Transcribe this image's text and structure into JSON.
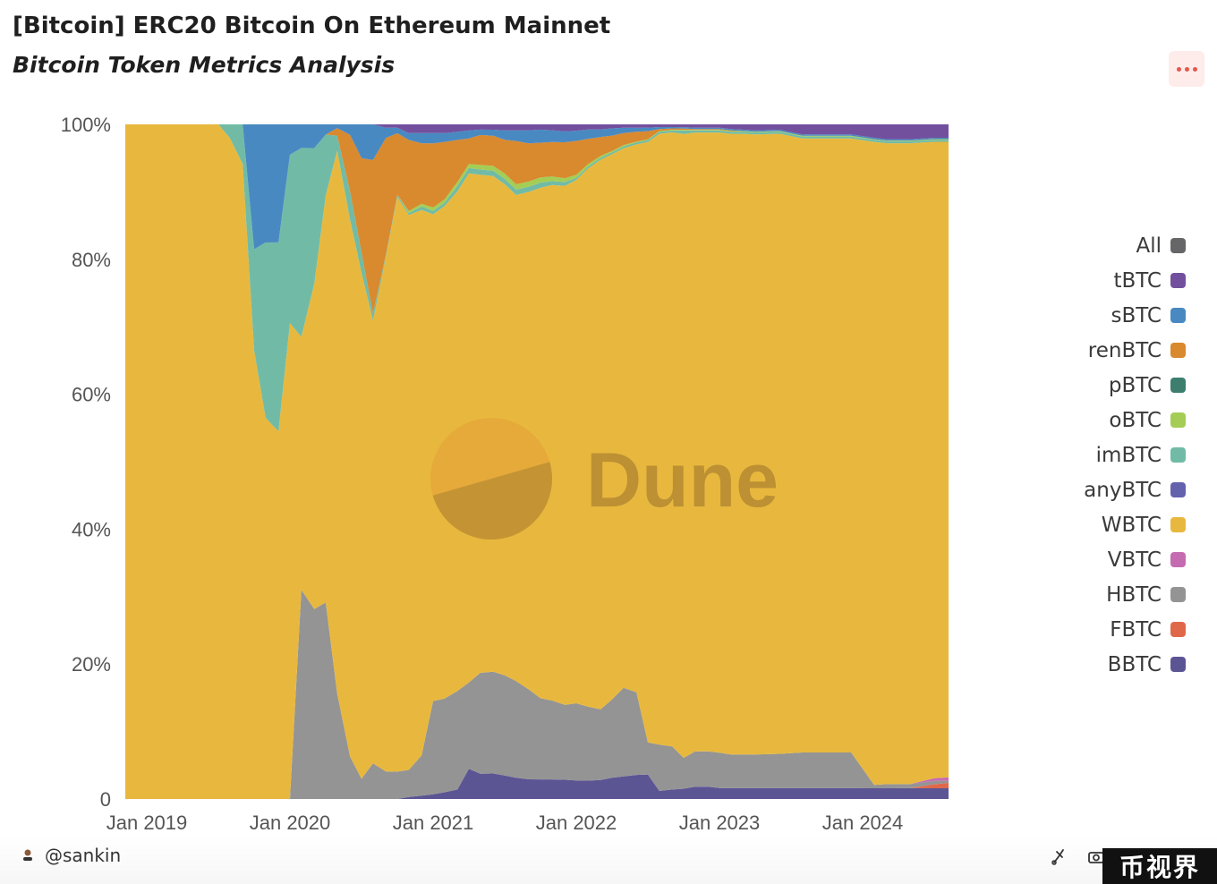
{
  "header": {
    "title": "[Bitcoin] ERC20 Bitcoin On Ethereum Mainnet",
    "subtitle": "Bitcoin Token Metrics Analysis"
  },
  "watermark": {
    "text": "Dune"
  },
  "footer": {
    "author": "@sankin",
    "badge": "币视界"
  },
  "colors": {
    "BBTC": "#5b5594",
    "FBTC": "#e0684a",
    "HBTC": "#949494",
    "VBTC": "#c56bb1",
    "WBTC": "#e8b83e",
    "anyBTC": "#6461ad",
    "imBTC": "#71bba6",
    "oBTC": "#a4cd55",
    "pBTC": "#3d7e6f",
    "renBTC": "#d9892e",
    "sBTC": "#4989c2",
    "tBTC": "#72509e",
    "All": "#666668",
    "more": "#e2574c"
  },
  "legend": [
    "All",
    "tBTC",
    "sBTC",
    "renBTC",
    "pBTC",
    "oBTC",
    "imBTC",
    "anyBTC",
    "WBTC",
    "VBTC",
    "HBTC",
    "FBTC",
    "BBTC"
  ],
  "chart_data": {
    "type": "area",
    "stacked": true,
    "normalized": true,
    "title": "[Bitcoin] ERC20 Bitcoin On Ethereum Mainnet",
    "subtitle": "Bitcoin Token Metrics Analysis",
    "xlabel": "",
    "ylabel": "",
    "ylim": [
      0,
      100
    ],
    "yticks": [
      "0",
      "20%",
      "40%",
      "60%",
      "80%",
      "100%"
    ],
    "xticks": [
      {
        "label": "Jan 2019",
        "x": 2019.0
      },
      {
        "label": "Jan 2020",
        "x": 2020.0
      },
      {
        "label": "Jan 2021",
        "x": 2021.0
      },
      {
        "label": "Jan 2022",
        "x": 2022.0
      },
      {
        "label": "Jan 2023",
        "x": 2023.0
      },
      {
        "label": "Jan 2024",
        "x": 2024.0
      }
    ],
    "xlim": [
      2018.85,
      2024.6
    ],
    "x": [
      2018.85,
      2019.5,
      2019.58,
      2019.67,
      2019.75,
      2019.83,
      2019.92,
      2020.0,
      2020.08,
      2020.17,
      2020.25,
      2020.33,
      2020.42,
      2020.5,
      2020.58,
      2020.67,
      2020.75,
      2020.83,
      2020.92,
      2021.0,
      2021.08,
      2021.17,
      2021.25,
      2021.33,
      2021.42,
      2021.5,
      2021.58,
      2021.67,
      2021.75,
      2021.83,
      2021.92,
      2022.0,
      2022.08,
      2022.17,
      2022.25,
      2022.33,
      2022.42,
      2022.5,
      2022.58,
      2022.67,
      2022.75,
      2022.83,
      2022.92,
      2023.0,
      2023.08,
      2023.17,
      2023.25,
      2023.42,
      2023.58,
      2023.75,
      2023.92,
      2024.08,
      2024.17,
      2024.33,
      2024.5,
      2024.6
    ],
    "series": [
      {
        "name": "BBTC",
        "values": [
          0,
          0,
          0,
          0,
          0,
          0,
          0,
          0,
          0,
          0,
          0,
          0,
          0,
          0,
          0,
          0,
          0,
          0.3,
          0.5,
          0.7,
          1.0,
          1.4,
          4.5,
          3.8,
          3.8,
          3.5,
          3.2,
          3.0,
          3.0,
          3.0,
          3.0,
          2.9,
          2.9,
          3.0,
          3.2,
          3.4,
          3.6,
          3.6,
          1.2,
          1.4,
          1.5,
          1.8,
          1.8,
          1.6,
          1.6,
          1.6,
          1.6,
          1.6,
          1.6,
          1.6,
          1.6,
          1.6,
          1.6,
          1.6,
          1.6,
          1.6
        ]
      },
      {
        "name": "FBTC",
        "values": [
          0,
          0,
          0,
          0,
          0,
          0,
          0,
          0,
          0,
          0,
          0,
          0,
          0,
          0,
          0,
          0,
          0,
          0,
          0,
          0,
          0,
          0,
          0,
          0,
          0,
          0,
          0,
          0,
          0,
          0,
          0,
          0,
          0,
          0,
          0,
          0,
          0,
          0,
          0,
          0,
          0,
          0,
          0,
          0,
          0,
          0,
          0,
          0,
          0,
          0,
          0,
          0,
          0,
          0,
          0.6,
          0.8
        ]
      },
      {
        "name": "HBTC",
        "values": [
          0,
          0,
          0,
          0,
          0,
          0,
          0,
          0,
          31,
          28,
          29,
          14,
          6,
          3,
          5,
          4,
          4,
          4,
          6,
          13.8,
          13.9,
          14.6,
          12.9,
          15.2,
          15.2,
          14.9,
          14.5,
          13.7,
          12.4,
          12.1,
          11.7,
          12.1,
          11.7,
          11.2,
          11.8,
          13.3,
          12.4,
          4.7,
          6.9,
          6.4,
          4.5,
          5.2,
          5.2,
          5.2,
          5.0,
          5.0,
          5.0,
          5.1,
          5.3,
          5.3,
          5.3,
          0.5,
          0.6,
          0.6,
          0.5,
          0.3
        ]
      },
      {
        "name": "VBTC",
        "values": [
          0,
          0,
          0,
          0,
          0,
          0,
          0,
          0,
          0,
          0,
          0,
          0,
          0,
          0,
          0,
          0,
          0,
          0,
          0,
          0,
          0,
          0,
          0,
          0,
          0,
          0,
          0,
          0,
          0,
          0,
          0,
          0,
          0,
          0,
          0,
          0,
          0,
          0,
          0,
          0,
          0,
          0,
          0,
          0,
          0,
          0,
          0,
          0,
          0,
          0,
          0,
          0,
          0,
          0,
          0.4,
          0.5
        ]
      },
      {
        "name": "WBTC",
        "values": [
          100,
          100,
          98,
          80,
          66.5,
          56.5,
          54.5,
          70.5,
          37.5,
          48,
          60,
          72,
          76,
          75,
          62,
          75,
          84,
          82,
          81,
          72,
          73,
          74,
          76,
          75,
          74,
          73,
          73,
          76,
          78,
          79,
          81,
          82,
          85,
          87,
          82,
          81,
          82,
          88,
          91,
          91,
          91,
          91,
          91,
          91,
          92,
          92,
          92,
          92,
          91,
          91,
          91,
          95.5,
          95.2,
          95.0,
          94.7,
          94.5
        ]
      },
      {
        "name": "anyBTC",
        "values": [
          0,
          0,
          0,
          0,
          0,
          0,
          0,
          0,
          0,
          0,
          0,
          0,
          0,
          0,
          0,
          0,
          0,
          0,
          0,
          0,
          0,
          0,
          0,
          0,
          0,
          0,
          0,
          0,
          0,
          0,
          0,
          0,
          0,
          0,
          0,
          0,
          0,
          0,
          0,
          0,
          0,
          0,
          0,
          0,
          0,
          0,
          0,
          0,
          0,
          0,
          0,
          0,
          0,
          0,
          0,
          0
        ]
      },
      {
        "name": "imBTC",
        "values": [
          0,
          0,
          2,
          5,
          15,
          26,
          28,
          25,
          28,
          20,
          9,
          2,
          4,
          3,
          1,
          0.3,
          0.3,
          0.3,
          0.5,
          0.5,
          0.5,
          0.8,
          0.8,
          0.8,
          0.8,
          0.8,
          0.8,
          0.8,
          0.8,
          0.6,
          0.6,
          0.3,
          0.3,
          0.3,
          0.3,
          0.3,
          0.3,
          0.3,
          0.3,
          0.3,
          0.5,
          0.3,
          0.3,
          0.3,
          0.3,
          0.3,
          0.3,
          0.3,
          0.3,
          0.3,
          0.3,
          0.3,
          0.3,
          0.3,
          0.3,
          0.3
        ]
      },
      {
        "name": "oBTC",
        "values": [
          0,
          0,
          0,
          0,
          0,
          0,
          0,
          0,
          0,
          0,
          0,
          0,
          0,
          0,
          0,
          0,
          0,
          0.3,
          0.4,
          0.5,
          0.5,
          0.6,
          0.6,
          0.7,
          0.7,
          0.8,
          0.8,
          0.8,
          0.8,
          0.7,
          0.6,
          0.5,
          0.4,
          0.3,
          0.2,
          0.2,
          0.1,
          0.1,
          0.1,
          0.1,
          0.1,
          0.1,
          0.1,
          0.1,
          0.1,
          0.1,
          0.1,
          0.1,
          0.1,
          0.1,
          0.1,
          0.1,
          0.1,
          0.1,
          0.1,
          0.1
        ]
      },
      {
        "name": "pBTC",
        "values": [
          0,
          0,
          0,
          0,
          0,
          0,
          0,
          0,
          0,
          0,
          0,
          0,
          0,
          0,
          0,
          0,
          0,
          0,
          0,
          0,
          0,
          0,
          0,
          0,
          0,
          0,
          0,
          0,
          0,
          0,
          0,
          0,
          0,
          0,
          0,
          0,
          0,
          0,
          0,
          0,
          0,
          0,
          0,
          0,
          0,
          0,
          0,
          0,
          0,
          0,
          0,
          0,
          0,
          0,
          0,
          0
        ]
      },
      {
        "name": "renBTC",
        "values": [
          0,
          0,
          0,
          0,
          0,
          0,
          0,
          0,
          0,
          0,
          0,
          1,
          8,
          14,
          21.5,
          17,
          9,
          10.5,
          9,
          9.5,
          8.5,
          6.2,
          3.8,
          4.5,
          4.5,
          5,
          6.5,
          5.8,
          5.3,
          5.3,
          5.6,
          5.3,
          4,
          3,
          2.3,
          1.8,
          1.5,
          1.2,
          0.3,
          0.2,
          0.2,
          0.1,
          0.1,
          0.1,
          0.1,
          0,
          0,
          0,
          0,
          0,
          0,
          0,
          0,
          0,
          0,
          0
        ]
      },
      {
        "name": "sBTC",
        "values": [
          0,
          0,
          0,
          0,
          18.5,
          17.5,
          17.5,
          4.5,
          3.5,
          3.5,
          1.5,
          0.5,
          1.5,
          5,
          5,
          1.5,
          0.8,
          1,
          1.5,
          1.5,
          1.3,
          1.2,
          1.2,
          0.8,
          0.9,
          1.4,
          1.6,
          2.0,
          2.0,
          1.8,
          1.7,
          1.6,
          1.5,
          1.2,
          1.1,
          0.8,
          0.6,
          0.5,
          0.3,
          0.2,
          0.2,
          0.2,
          0.2,
          0.2,
          0.2,
          0.2,
          0.2,
          0.2,
          0.2,
          0.2,
          0.2,
          0.2,
          0.2,
          0.2,
          0.2,
          0.2
        ]
      },
      {
        "name": "tBTC",
        "values": [
          0,
          0,
          0,
          0,
          0,
          0,
          0,
          0,
          0,
          0,
          0,
          0,
          0,
          0,
          0,
          0.5,
          0.5,
          1.3,
          1.3,
          1.3,
          1.3,
          1.1,
          0.9,
          0.8,
          0.8,
          0.9,
          0.9,
          0.9,
          0.8,
          0.9,
          1.1,
          1.0,
          0.8,
          0.8,
          0.6,
          0.5,
          0.5,
          0.5,
          0.4,
          0.4,
          0.4,
          0.5,
          0.5,
          0.5,
          0.7,
          0.8,
          0.9,
          0.8,
          1.5,
          1.5,
          1.5,
          2.0,
          2.2,
          2.2,
          2.0,
          2.0
        ]
      }
    ]
  }
}
